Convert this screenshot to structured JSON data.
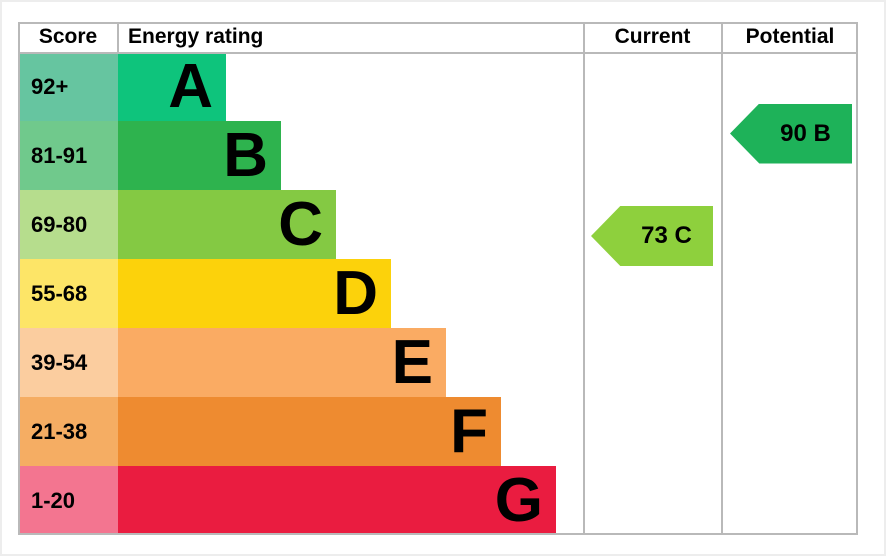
{
  "header": {
    "score": "Score",
    "energy_rating": "Energy rating",
    "current": "Current",
    "potential": "Potential"
  },
  "chart_data": {
    "type": "bar",
    "subtype": "epc-energy-rating-chart",
    "orientation": "horizontal",
    "title": "Energy rating",
    "columns": [
      "Score",
      "Energy rating",
      "Current",
      "Potential"
    ],
    "bands": [
      {
        "rating": "A",
        "score_range": "92+",
        "score_min": 92,
        "score_max": 100,
        "bar_color": "#0ec47c",
        "score_cell_color": "#66c5a0"
      },
      {
        "rating": "B",
        "score_range": "81-91",
        "score_min": 81,
        "score_max": 91,
        "bar_color": "#2eb34e",
        "score_cell_color": "#70c98c"
      },
      {
        "rating": "C",
        "score_range": "69-80",
        "score_min": 69,
        "score_max": 80,
        "bar_color": "#84c943",
        "score_cell_color": "#b6dd8d"
      },
      {
        "rating": "D",
        "score_range": "55-68",
        "score_min": 55,
        "score_max": 68,
        "bar_color": "#fcd20b",
        "score_cell_color": "#fde567"
      },
      {
        "rating": "E",
        "score_range": "39-54",
        "score_min": 39,
        "score_max": 54,
        "bar_color": "#faab63",
        "score_cell_color": "#fbcd9f"
      },
      {
        "rating": "F",
        "score_range": "21-38",
        "score_min": 21,
        "score_max": 38,
        "bar_color": "#ee8b30",
        "score_cell_color": "#f5ad63"
      },
      {
        "rating": "G",
        "score_range": "1-20",
        "score_min": 1,
        "score_max": 20,
        "bar_color": "#ea1c40",
        "score_cell_color": "#f37590"
      }
    ],
    "markers": {
      "current": {
        "label": "73 C",
        "score": 73,
        "rating": "C",
        "color": "#8ed03d"
      },
      "potential": {
        "label": "90 B",
        "score": 90,
        "rating": "B",
        "color": "#1eb259"
      }
    },
    "layout_hints": {
      "legend": false,
      "gridlines": "table-borders-only"
    }
  },
  "colors": {
    "grid_line": "#b9b9b9",
    "text": "#000000",
    "background": "#ffffff"
  }
}
